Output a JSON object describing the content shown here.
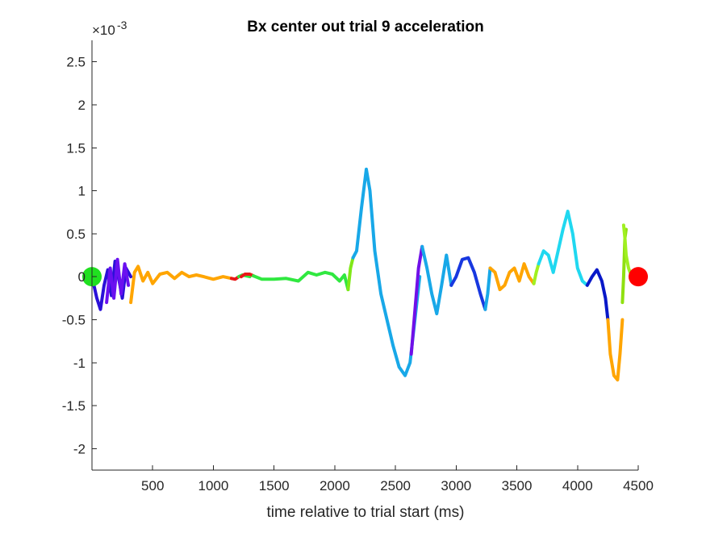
{
  "chart_data": {
    "type": "line",
    "title": "Bx  center out trial 9 acceleration",
    "xlabel": "time relative to trial start (ms)",
    "ylabel": "",
    "y_exponent_label": "×10",
    "y_exponent_power": "-3",
    "xlim": [
      0,
      4500
    ],
    "ylim": [
      -2.25,
      2.75
    ],
    "xticks": [
      500,
      1000,
      1500,
      2000,
      2500,
      3000,
      3500,
      4000,
      4500
    ],
    "xtick_labels": [
      "500",
      "1000",
      "1500",
      "2000",
      "2500",
      "3000",
      "3500",
      "4000",
      "4500"
    ],
    "yticks": [
      2.5,
      2,
      1.5,
      1,
      0.5,
      0,
      -0.5,
      -1,
      -1.5,
      -2
    ],
    "ytick_labels": [
      "2.5",
      "2",
      "1.5",
      "1",
      "0.5",
      "0",
      "-0.5",
      "-1",
      "-1.5",
      "-2"
    ],
    "grid": false,
    "legend": "none",
    "series": [
      {
        "color": "#2a10d8",
        "x": [
          0,
          40,
          70,
          100,
          130,
          160,
          190,
          220,
          250,
          280,
          320
        ],
        "y": [
          0,
          -0.25,
          -0.38,
          -0.1,
          0.08,
          -0.22,
          0.18,
          -0.02,
          -0.25,
          0.1,
          0.0
        ]
      },
      {
        "color": "#6a10f0",
        "x": [
          120,
          150,
          180,
          210,
          240,
          270,
          300
        ],
        "y": [
          -0.3,
          0.1,
          -0.25,
          0.2,
          -0.2,
          0.15,
          -0.1
        ]
      },
      {
        "color": "#ffa500",
        "x": [
          320,
          350,
          380,
          420,
          460,
          500,
          560,
          620,
          680,
          740,
          800,
          860,
          920,
          1000,
          1080,
          1150
        ],
        "y": [
          -0.3,
          0.05,
          0.12,
          -0.05,
          0.05,
          -0.08,
          0.03,
          0.05,
          -0.02,
          0.05,
          0.0,
          0.02,
          0.0,
          -0.03,
          0.0,
          -0.02
        ]
      },
      {
        "color": "#e81818",
        "x": [
          1150,
          1180,
          1210
        ],
        "y": [
          -0.02,
          -0.03,
          0.0
        ]
      },
      {
        "color": "#30e840",
        "x": [
          1210,
          1240,
          1270,
          1300
        ],
        "y": [
          0.0,
          0.02,
          0.01,
          0.0
        ]
      },
      {
        "color": "#e81818",
        "x": [
          1230,
          1260,
          1300,
          1330
        ],
        "y": [
          0.0,
          0.03,
          0.03,
          0.01
        ]
      },
      {
        "color": "#30e840",
        "x": [
          1330,
          1400,
          1500,
          1600,
          1700,
          1780,
          1850,
          1920,
          1980,
          2040,
          2080,
          2110
        ],
        "y": [
          0.01,
          -0.03,
          -0.03,
          -0.02,
          -0.05,
          0.05,
          0.02,
          0.05,
          0.03,
          -0.05,
          0.02,
          -0.15
        ]
      },
      {
        "color": "#80e818",
        "x": [
          2110,
          2130,
          2150
        ],
        "y": [
          -0.15,
          0.1,
          0.22
        ]
      },
      {
        "color": "#18a8e8",
        "x": [
          2150,
          2180,
          2220,
          2260,
          2290,
          2330,
          2380,
          2430,
          2480,
          2530,
          2580,
          2620,
          2660,
          2700
        ],
        "y": [
          0.22,
          0.3,
          0.8,
          1.25,
          1.0,
          0.3,
          -0.2,
          -0.5,
          -0.8,
          -1.05,
          -1.15,
          -1.0,
          -0.5,
          0.0
        ]
      },
      {
        "color": "#7010e8",
        "x": [
          2630,
          2660,
          2690,
          2720
        ],
        "y": [
          -0.9,
          -0.4,
          0.1,
          0.35
        ]
      },
      {
        "color": "#18a8e8",
        "x": [
          2720,
          2760,
          2800,
          2840,
          2880,
          2920,
          2960
        ],
        "y": [
          0.35,
          0.1,
          -0.2,
          -0.43,
          -0.1,
          0.25,
          -0.1
        ]
      },
      {
        "color": "#1838e0",
        "x": [
          2960,
          3000,
          3050,
          3100,
          3150,
          3200,
          3240
        ],
        "y": [
          -0.1,
          0.0,
          0.2,
          0.22,
          0.05,
          -0.2,
          -0.38
        ]
      },
      {
        "color": "#18a8e8",
        "x": [
          3240,
          3260,
          3280
        ],
        "y": [
          -0.38,
          -0.2,
          0.1
        ]
      },
      {
        "color": "#ffa500",
        "x": [
          3280,
          3320,
          3360,
          3400,
          3440,
          3480,
          3520,
          3560,
          3600,
          3640
        ],
        "y": [
          0.1,
          0.05,
          -0.15,
          -0.1,
          0.05,
          0.1,
          -0.05,
          0.15,
          0.0,
          -0.08
        ]
      },
      {
        "color": "#a0f020",
        "x": [
          3640,
          3660,
          3680
        ],
        "y": [
          -0.08,
          0.05,
          0.15
        ]
      },
      {
        "color": "#20d8f0",
        "x": [
          3680,
          3720,
          3760,
          3800,
          3840,
          3880,
          3920,
          3960,
          4000,
          4040,
          4080
        ],
        "y": [
          0.15,
          0.3,
          0.25,
          0.05,
          0.3,
          0.55,
          0.76,
          0.5,
          0.1,
          -0.05,
          -0.1
        ]
      },
      {
        "color": "#0818c8",
        "x": [
          4080,
          4120,
          4160,
          4200,
          4230,
          4250
        ],
        "y": [
          -0.1,
          0.0,
          0.08,
          -0.05,
          -0.25,
          -0.5
        ]
      },
      {
        "color": "#ffa500",
        "x": [
          4250,
          4270,
          4300,
          4330,
          4350,
          4370
        ],
        "y": [
          -0.5,
          -0.9,
          -1.15,
          -1.2,
          -0.9,
          -0.5
        ]
      },
      {
        "color": "#90e010",
        "x": [
          4370,
          4380,
          4390,
          4400
        ],
        "y": [
          -0.3,
          0.0,
          0.45,
          0.55
        ]
      },
      {
        "color": "#a0f020",
        "x": [
          4380,
          4390,
          4400,
          4420,
          4440
        ],
        "y": [
          0.6,
          0.45,
          0.25,
          0.1,
          0.02
        ]
      }
    ],
    "markers": [
      {
        "label": "start",
        "x": 0,
        "y": 0,
        "color": "#20e020"
      },
      {
        "label": "end",
        "x": 4500,
        "y": 0,
        "color": "#ff0000"
      }
    ]
  }
}
